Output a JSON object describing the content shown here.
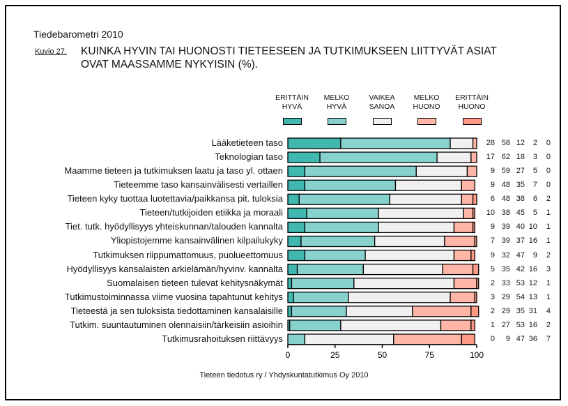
{
  "header": {
    "subtitle": "Tiedebarometri 2010",
    "figure_label": "Kuvio 27.",
    "title_line1": "KUINKA HYVIN TAI HUONOSTI TIETEESEEN JA TUTKIMUKSEEN LIITTYVÄT ASIAT",
    "title_line2": "OVAT MAASSAMME NYKYISIN (%)."
  },
  "footer": "Tieteen tiedotus ry / Yhdyskuntatutkimus Oy 2010",
  "chart_data": {
    "type": "bar",
    "orientation": "horizontal",
    "stacked": true,
    "title": "KUINKA HYVIN TAI HUONOSTI TIETEESEEN JA TUTKIMUKSEEN LIITTYVÄT ASIAT OVAT MAASSAMME NYKYISIN (%).",
    "xlabel": "",
    "ylabel": "",
    "xlim": [
      0,
      100
    ],
    "xticks": [
      "0",
      "25",
      "50",
      "75",
      "100"
    ],
    "legend_position": "top",
    "grid": false,
    "series": [
      {
        "name": "ERITTÄIN HYVÄ",
        "line1": "ERITTÄIN",
        "line2": "HYVÄ",
        "color": "#40B8B0",
        "values": [
          28,
          17,
          9,
          9,
          6,
          10,
          9,
          7,
          9,
          5,
          2,
          3,
          2,
          1,
          0
        ]
      },
      {
        "name": "MELKO HYVÄ",
        "line1": "MELKO",
        "line2": "HYVÄ",
        "color": "#88D2CE",
        "values": [
          58,
          62,
          59,
          48,
          48,
          38,
          39,
          39,
          32,
          35,
          33,
          29,
          29,
          27,
          9
        ]
      },
      {
        "name": "VAIKEA SANOA",
        "line1": "VAIKEA",
        "line2": "SANOA",
        "color": "#F0F0F0",
        "values": [
          12,
          18,
          27,
          35,
          38,
          45,
          40,
          37,
          47,
          42,
          53,
          54,
          35,
          53,
          47
        ]
      },
      {
        "name": "MELKO HUONO",
        "line1": "MELKO",
        "line2": "HUONO",
        "color": "#FFB6A6",
        "values": [
          2,
          3,
          5,
          7,
          6,
          5,
          10,
          16,
          9,
          16,
          12,
          13,
          31,
          16,
          36
        ]
      },
      {
        "name": "ERITTÄIN HUONO",
        "line1": "ERITTÄIN",
        "line2": "HUONO",
        "color": "#FF9A86",
        "values": [
          0,
          0,
          0,
          0,
          2,
          1,
          1,
          1,
          2,
          3,
          1,
          1,
          4,
          2,
          7
        ]
      }
    ],
    "categories": [
      "Lääketieteen taso",
      "Teknologian taso",
      "Maamme tieteen ja tutkimuksen laatu ja taso yl. ottaen",
      "Tieteemme taso kansainvälisesti vertaillen",
      "Tieteen kyky tuottaa luotettavia/paikkansa pit. tuloksia",
      "Tieteen/tutkijoiden etiikka ja moraali",
      "Tiet. tutk. hyödyllisyys yhteiskunnan/talouden kannalta",
      "Yliopistojemme kansainvälinen kilpailukyky",
      "Tutkimuksen riippumattomuus, puolueettomuus",
      "Hyödyllisyys kansalaisten arkielämän/hyvinv. kannalta",
      "Suomalaisen tieteen tulevat kehitysnäkymät",
      "Tutkimustoiminnassa viime vuosina tapahtunut kehitys",
      "Tieteestä ja sen tuloksista tiedottaminen kansalaisille",
      "Tutkim. suuntautuminen olennaisiin/tärkeisiin asioihin",
      "Tutkimusrahoituksen riittävyys"
    ]
  }
}
